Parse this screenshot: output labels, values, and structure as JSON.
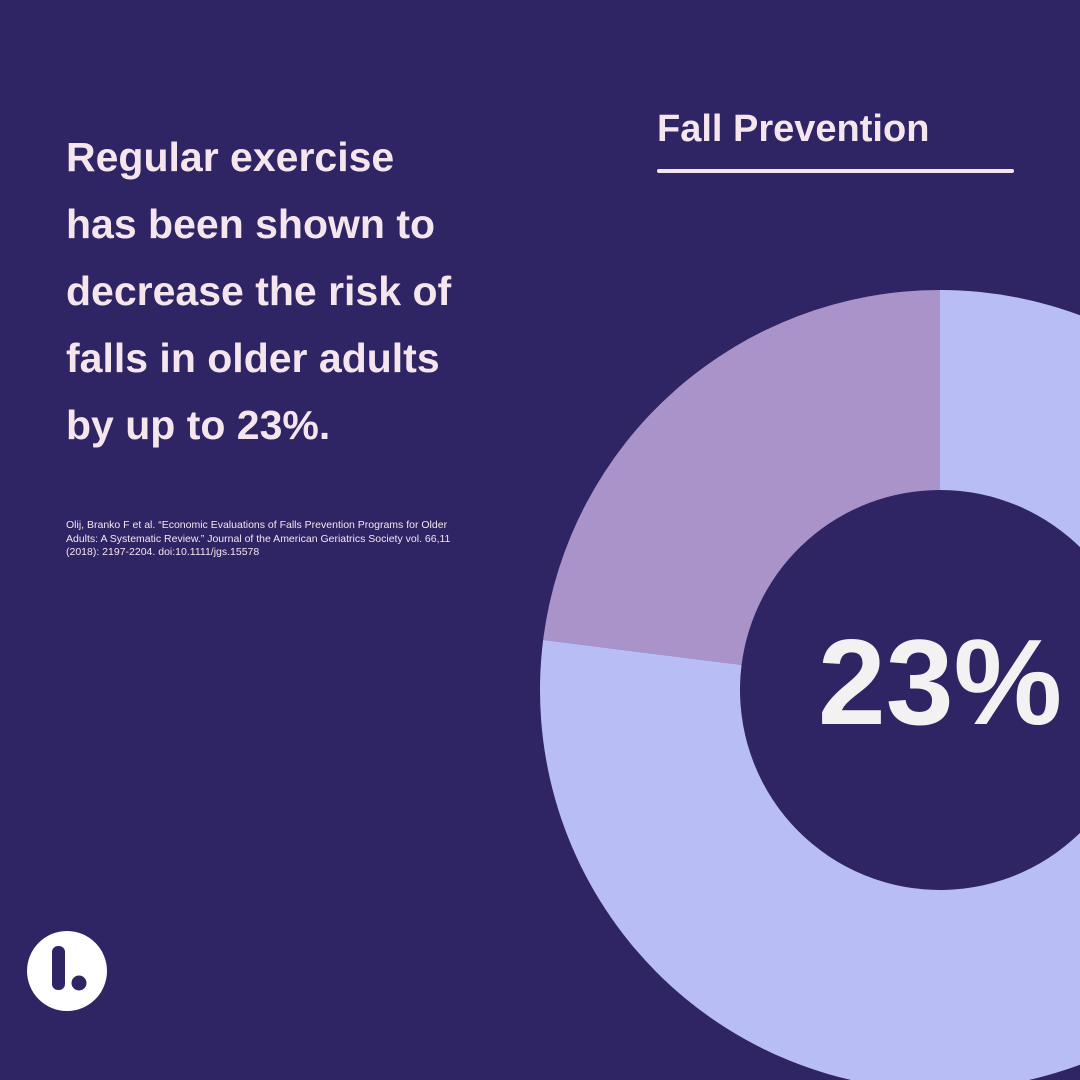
{
  "headline": [
    "Regular exercise",
    "has been shown to",
    "decrease the risk of",
    "falls in older adults",
    "by up to 23%."
  ],
  "citation": "Olij, Branko F et al. “Economic Evaluations of Falls Prevention Programs for Older Adults: A Systematic Review.” Journal of the American Geriatrics Society vol. 66,11 (2018): 2197-2204. doi:10.1111/jgs.15578",
  "chart_data": {
    "type": "donut",
    "title": "Fall Prevention",
    "values": [
      23,
      77
    ],
    "value_labels": [
      "23%",
      null
    ],
    "colors": [
      "#a993c8",
      "#b9bdf5"
    ]
  }
}
